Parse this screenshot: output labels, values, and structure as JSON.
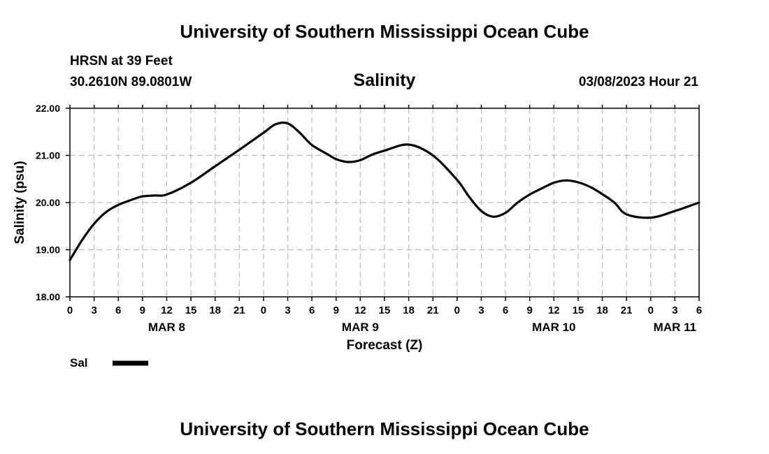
{
  "header": {
    "title": "University of Southern Mississippi Ocean Cube",
    "station": "HRSN at 39 Feet",
    "coords": "30.2610N  89.0801W",
    "datetime": "03/08/2023 Hour 21",
    "footer_title": "University of Southern Mississippi Ocean Cube"
  },
  "chart_data": {
    "type": "line",
    "title": "Salinity",
    "xlabel": "Forecast (Z)",
    "ylabel": "Salinity (psu)",
    "ylim": [
      18.0,
      22.0
    ],
    "yticks": [
      "18.00",
      "19.00",
      "20.00",
      "21.00",
      "22.00"
    ],
    "xlim": [
      0,
      78
    ],
    "x_tick_step_hours": 3,
    "xticks": [
      "0",
      "3",
      "6",
      "9",
      "12",
      "15",
      "18",
      "21",
      "0",
      "3",
      "6",
      "9",
      "12",
      "15",
      "18",
      "21",
      "0",
      "3",
      "6",
      "9",
      "12",
      "15",
      "18",
      "21",
      "0",
      "3",
      "6"
    ],
    "day_labels": [
      {
        "label": "MAR 8",
        "hour": 12
      },
      {
        "label": "MAR 9",
        "hour": 36
      },
      {
        "label": "MAR 10",
        "hour": 60
      },
      {
        "label": "MAR 11",
        "hour": 75
      }
    ],
    "grid": true,
    "series": [
      {
        "name": "Sal",
        "color": "#000000",
        "x": [
          0,
          1.5,
          3,
          4.5,
          6,
          8,
          9,
          10.5,
          12,
          15,
          18,
          21,
          24,
          25.5,
          27,
          28.5,
          30,
          32,
          33,
          34.5,
          36,
          37.5,
          39,
          42,
          45,
          48,
          49.5,
          51,
          52.5,
          54,
          55.5,
          57,
          58.5,
          60,
          61.5,
          63,
          64.5,
          66,
          67.5,
          69,
          72,
          75,
          78
        ],
        "values": [
          18.78,
          19.2,
          19.55,
          19.8,
          19.95,
          20.08,
          20.13,
          20.15,
          20.17,
          20.42,
          20.77,
          21.12,
          21.48,
          21.66,
          21.68,
          21.48,
          21.22,
          21.02,
          20.92,
          20.86,
          20.9,
          21.02,
          21.1,
          21.23,
          21.0,
          20.48,
          20.12,
          19.82,
          19.7,
          19.78,
          20.0,
          20.17,
          20.3,
          20.42,
          20.47,
          20.43,
          20.33,
          20.18,
          20.0,
          19.75,
          19.68,
          19.82,
          20.0
        ]
      }
    ],
    "legend": [
      {
        "label": "Sal",
        "position": "bottom-left"
      }
    ]
  }
}
